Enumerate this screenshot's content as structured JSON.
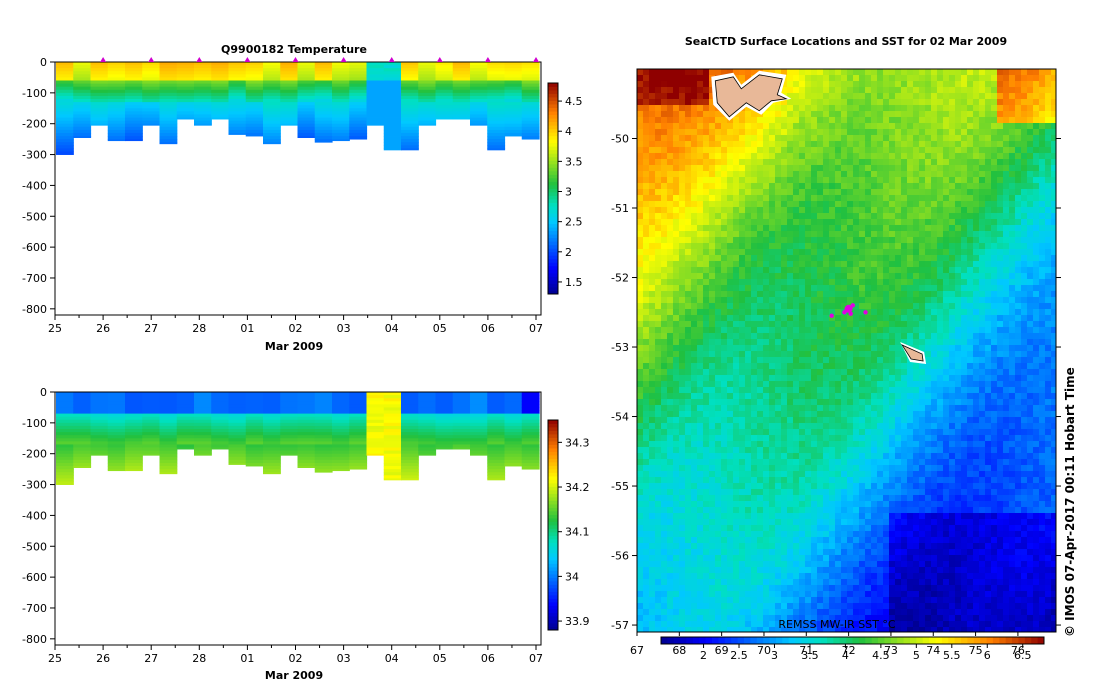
{
  "chart_data": [
    {
      "type": "heatmap",
      "panel": "temperature-section",
      "title": "Q9900182  Temperature",
      "xlabel": "Mar 2009",
      "x_ticks": [
        "25",
        "26",
        "27",
        "28",
        "01",
        "02",
        "03",
        "04",
        "05",
        "06",
        "07"
      ],
      "y_ticks": [
        "0",
        "-100",
        "-200",
        "-300",
        "-400",
        "-500",
        "-600",
        "-700",
        "-800"
      ],
      "ylim": [
        -820,
        0
      ],
      "colorbar_ticks": [
        "1.5",
        "2",
        "2.5",
        "3",
        "3.5",
        "4",
        "4.5"
      ],
      "colorbar_range": [
        1.3,
        4.8
      ],
      "profile_depths": [
        -300,
        -245,
        -205,
        -255,
        -255,
        -205,
        -265,
        -185,
        -205,
        -185,
        -235,
        -240,
        -265,
        -205,
        -245,
        -260,
        -255,
        -250,
        -205,
        -285,
        -285,
        -205,
        -185,
        -185,
        -205,
        -285,
        -240,
        -250
      ],
      "palette_hint": "upper 60 m warm (3.6-4.2), 60-200 m cool (2.3-2.9), deep 2.0-2.4"
    },
    {
      "type": "heatmap",
      "panel": "salinity-section",
      "title": "",
      "xlabel": "Mar 2009",
      "x_ticks": [
        "25",
        "26",
        "27",
        "28",
        "01",
        "02",
        "03",
        "04",
        "05",
        "06",
        "07"
      ],
      "y_ticks": [
        "0",
        "-100",
        "-200",
        "-300",
        "-400",
        "-500",
        "-600",
        "-700",
        "-800"
      ],
      "ylim": [
        -820,
        0
      ],
      "colorbar_ticks": [
        "33.9",
        "34",
        "34.1",
        "34.2",
        "34.3"
      ],
      "colorbar_range": [
        33.88,
        34.35
      ],
      "profile_depths": [
        -300,
        -245,
        -205,
        -255,
        -255,
        -205,
        -265,
        -185,
        -205,
        -185,
        -235,
        -240,
        -265,
        -205,
        -245,
        -260,
        -255,
        -250,
        -205,
        -285,
        -285,
        -205,
        -185,
        -185,
        -205,
        -285,
        -240,
        -250
      ]
    },
    {
      "type": "heatmap",
      "panel": "sst-map",
      "title": "SealCTD Surface Locations and SST for 02 Mar 2009",
      "x_ticks": [
        "67",
        "68",
        "69",
        "70",
        "71",
        "72",
        "73",
        "74",
        "75",
        "76"
      ],
      "y_ticks": [
        "-50",
        "-51",
        "-52",
        "-53",
        "-54",
        "-55",
        "-56",
        "-57"
      ],
      "xlim": [
        67,
        76.9
      ],
      "ylim": [
        -57.1,
        -49.0
      ],
      "colorbar_label": "REMSS MW-IR SST °C",
      "colorbar_ticks": [
        "2",
        "2.5",
        "3",
        "3.5",
        "4",
        "4.5",
        "5",
        "5.5",
        "6",
        "6.5"
      ],
      "colorbar_range": [
        1.4,
        6.8
      ],
      "islands": [
        {
          "name": "Kerguelen",
          "lon": 69.7,
          "lat": -49.4
        },
        {
          "name": "Heard",
          "lon": 73.5,
          "lat": -53.1
        }
      ],
      "surface_locations": [
        {
          "lon": 72.0,
          "lat": -52.45
        },
        {
          "lon": 71.9,
          "lat": -52.5
        },
        {
          "lon": 72.1,
          "lat": -52.4
        },
        {
          "lon": 71.6,
          "lat": -52.55
        },
        {
          "lon": 72.4,
          "lat": -52.5
        },
        {
          "lon": 71.95,
          "lat": -52.47
        },
        {
          "lon": 72.05,
          "lat": -52.52
        }
      ]
    }
  ],
  "credit": "©  IMOS 07-Apr-2017 00:11 Hobart Time"
}
